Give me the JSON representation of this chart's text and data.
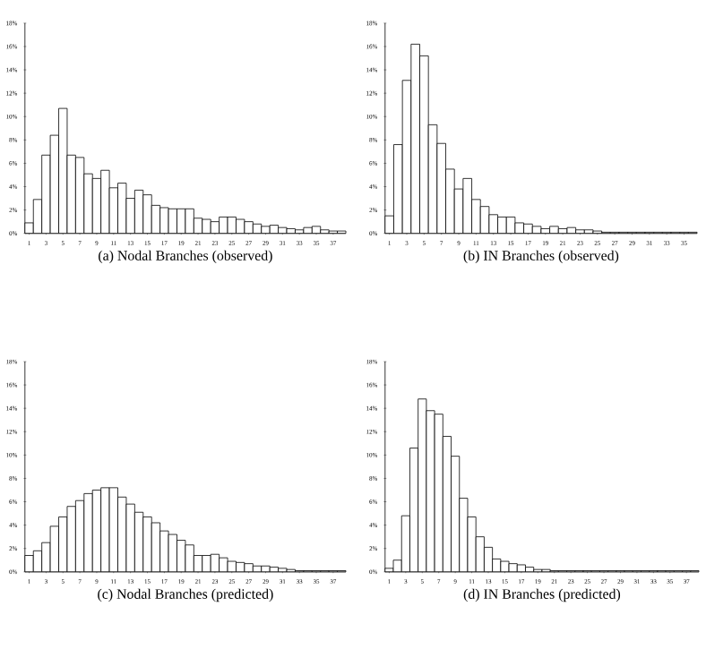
{
  "chart_data": [
    {
      "type": "bar",
      "title": "(a) Nodal Branches (observed)",
      "categories": [
        "1",
        null,
        "3",
        null,
        "5",
        null,
        "7",
        null,
        "9",
        null,
        "11",
        null,
        "13",
        null,
        "15",
        null,
        "17",
        null,
        "19",
        null,
        "21",
        null,
        "23",
        null,
        "25",
        null,
        "27",
        null,
        "29",
        null,
        "31",
        null,
        "33",
        null,
        "35",
        null,
        "37",
        null
      ],
      "values": [
        0.9,
        2.9,
        6.7,
        8.4,
        10.7,
        6.7,
        6.5,
        5.1,
        4.7,
        5.4,
        3.9,
        4.3,
        3.0,
        3.7,
        3.3,
        2.4,
        2.2,
        2.1,
        2.1,
        2.1,
        1.3,
        1.2,
        1.0,
        1.4,
        1.4,
        1.2,
        1.0,
        0.8,
        0.6,
        0.7,
        0.5,
        0.4,
        0.3,
        0.5,
        0.6,
        0.3,
        0.2,
        0.2
      ],
      "color": "#ffffff",
      "ylim": [
        0,
        18
      ],
      "yticks": [
        {
          "value": 0,
          "label": "0%"
        },
        {
          "value": 2,
          "label": "2%"
        },
        {
          "value": 4,
          "label": "4%"
        },
        {
          "value": 6,
          "label": "6%"
        },
        {
          "value": 8,
          "label": "8%"
        },
        {
          "value": 10,
          "label": "10%"
        },
        {
          "value": 12,
          "label": "12%"
        },
        {
          "value": 14,
          "label": "14%"
        },
        {
          "value": 16,
          "label": "16%"
        },
        {
          "value": 18,
          "label": "18%"
        }
      ]
    },
    {
      "type": "bar",
      "title": "(b) IN Branches (observed)",
      "categories": [
        "1",
        null,
        "3",
        null,
        "5",
        null,
        "7",
        null,
        "9",
        null,
        "11",
        null,
        "13",
        null,
        "15",
        null,
        "17",
        null,
        "19",
        null,
        "21",
        null,
        "23",
        null,
        "25",
        null,
        "27",
        null,
        "29",
        null,
        "31",
        null,
        "33",
        null,
        "35",
        null
      ],
      "values": [
        1.5,
        7.6,
        13.1,
        16.2,
        15.2,
        9.3,
        7.7,
        5.5,
        3.8,
        4.7,
        2.9,
        2.3,
        1.6,
        1.4,
        1.4,
        0.9,
        0.8,
        0.6,
        0.4,
        0.6,
        0.4,
        0.5,
        0.3,
        0.3,
        0.2,
        0.1,
        0.1,
        0.1,
        0.1,
        0.1,
        0.1,
        0.1,
        0.1,
        0.1,
        0.1,
        0.1
      ],
      "color": "#ffffff",
      "ylim": [
        0,
        18
      ],
      "yticks": [
        {
          "value": 0,
          "label": "0%"
        },
        {
          "value": 2,
          "label": "2%"
        },
        {
          "value": 4,
          "label": "4%"
        },
        {
          "value": 6,
          "label": "6%"
        },
        {
          "value": 8,
          "label": "8%"
        },
        {
          "value": 10,
          "label": "10%"
        },
        {
          "value": 12,
          "label": "12%"
        },
        {
          "value": 14,
          "label": "14%"
        },
        {
          "value": 16,
          "label": "16%"
        },
        {
          "value": 18,
          "label": "18%"
        }
      ]
    },
    {
      "type": "bar",
      "title": "(c) Nodal Branches (predicted)",
      "categories": [
        "1",
        null,
        "3",
        null,
        "5",
        null,
        "7",
        null,
        "9",
        null,
        "11",
        null,
        "13",
        null,
        "15",
        null,
        "17",
        null,
        "19",
        null,
        "21",
        null,
        "23",
        null,
        "25",
        null,
        "27",
        null,
        "29",
        null,
        "31",
        null,
        "33",
        null,
        "35",
        null,
        "37",
        null
      ],
      "values": [
        1.4,
        1.8,
        2.5,
        3.9,
        4.7,
        5.6,
        6.1,
        6.7,
        7.0,
        7.2,
        7.2,
        6.4,
        5.8,
        5.1,
        4.7,
        4.2,
        3.5,
        3.2,
        2.7,
        2.3,
        1.4,
        1.4,
        1.5,
        1.2,
        0.9,
        0.8,
        0.7,
        0.5,
        0.5,
        0.4,
        0.3,
        0.2,
        0.1,
        0.1,
        0.1,
        0.1,
        0.1,
        0.1
      ],
      "color": "#ffffff",
      "ylim": [
        0,
        18
      ],
      "yticks": [
        {
          "value": 0,
          "label": "0%"
        },
        {
          "value": 2,
          "label": "2%"
        },
        {
          "value": 4,
          "label": "4%"
        },
        {
          "value": 6,
          "label": "6%"
        },
        {
          "value": 8,
          "label": "8%"
        },
        {
          "value": 10,
          "label": "10%"
        },
        {
          "value": 12,
          "label": "12%"
        },
        {
          "value": 14,
          "label": "14%"
        },
        {
          "value": 16,
          "label": "16%"
        },
        {
          "value": 18,
          "label": "18%"
        }
      ]
    },
    {
      "type": "bar",
      "title": "(d) IN Branches (predicted)",
      "categories": [
        "1",
        null,
        "3",
        null,
        "5",
        null,
        "7",
        null,
        "9",
        null,
        "11",
        null,
        "13",
        null,
        "15",
        null,
        "17",
        null,
        "19",
        null,
        "21",
        null,
        "23",
        null,
        "25",
        null,
        "27",
        null,
        "29",
        null,
        "31",
        null,
        "33",
        null,
        "35",
        null,
        "37",
        null
      ],
      "values": [
        0.3,
        1.0,
        4.8,
        10.6,
        14.8,
        13.8,
        13.5,
        11.6,
        9.9,
        6.3,
        4.7,
        3.0,
        2.1,
        1.1,
        0.9,
        0.7,
        0.6,
        0.4,
        0.2,
        0.2,
        0.1,
        0.1,
        0.1,
        0.1,
        0.1,
        0.1,
        0.1,
        0.1,
        0.1,
        0.1,
        0.1,
        0.1,
        0.1,
        0.1,
        0.1,
        0.1,
        0.1,
        0.1
      ],
      "color": "#ffffff",
      "ylim": [
        0,
        18
      ],
      "yticks": [
        {
          "value": 0,
          "label": "0%"
        },
        {
          "value": 2,
          "label": "2%"
        },
        {
          "value": 4,
          "label": "4%"
        },
        {
          "value": 6,
          "label": "6%"
        },
        {
          "value": 8,
          "label": "8%"
        },
        {
          "value": 10,
          "label": "10%"
        },
        {
          "value": 12,
          "label": "12%"
        },
        {
          "value": 14,
          "label": "14%"
        },
        {
          "value": 16,
          "label": "16%"
        },
        {
          "value": 18,
          "label": "18%"
        }
      ]
    }
  ]
}
